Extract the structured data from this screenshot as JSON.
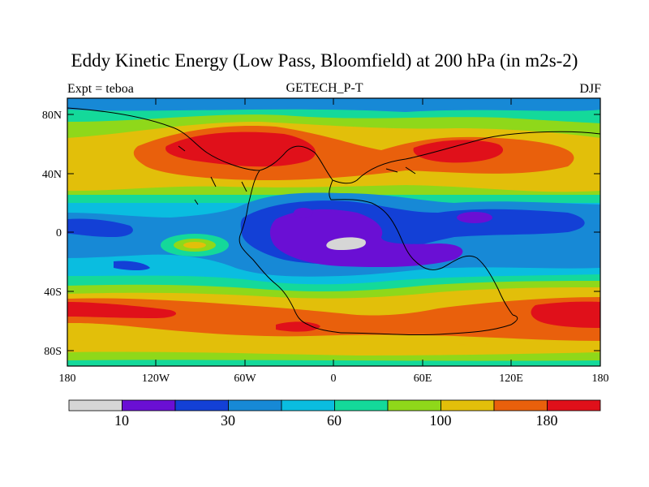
{
  "title": "Eddy Kinetic Energy (Low Pass, Bloomfield) at 200 hPa (in m2s-2)",
  "subtitle_left": "Expt = teboa",
  "subtitle_center": "GETECH_P-T",
  "subtitle_right": "DJF",
  "y_axis_labels": [
    "80N",
    "40N",
    "0",
    "40S",
    "80S"
  ],
  "x_axis_labels": [
    "180",
    "120W",
    "60W",
    "0",
    "60E",
    "120E",
    "180"
  ],
  "colorbar": {
    "colors": [
      "#d6d6d6",
      "#6a0fd4",
      "#1340d6",
      "#1789d6",
      "#0abde0",
      "#14d99a",
      "#8fd81a",
      "#e2bf0a",
      "#e9600c",
      "#e0101a"
    ],
    "labels": [
      "10",
      "30",
      "60",
      "100",
      "180"
    ]
  }
}
